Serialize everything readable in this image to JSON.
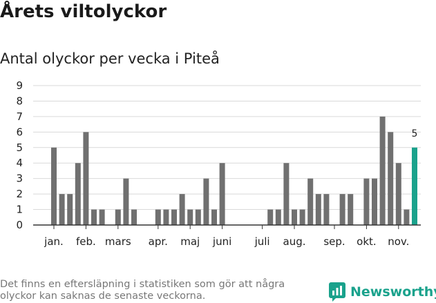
{
  "header": {
    "title": "Årets viltolyckor",
    "subtitle": "Antal olyckor per vecka i Piteå"
  },
  "footer": {
    "note": "Det finns en eftersläpning i statistiken som gör att några olyckor kan saknas de senaste veckorna.",
    "brand": "Newsworthy",
    "brand_icon": "newsworthy-logo-icon"
  },
  "colors": {
    "bar": "#707070",
    "highlight": "#1aa28c",
    "grid": "#d9d9d9",
    "axis": "#333333",
    "brand": "#1aa28c"
  },
  "chart_data": {
    "type": "bar",
    "title": "Antal olyckor per vecka i Piteå",
    "xlabel": "",
    "ylabel": "",
    "ylim": [
      0,
      9
    ],
    "yticks": [
      0,
      1,
      2,
      3,
      4,
      5,
      6,
      7,
      8,
      9
    ],
    "grid": true,
    "weeks": [
      1,
      2,
      3,
      4,
      5,
      6,
      7,
      8,
      9,
      10,
      11,
      12,
      13,
      14,
      15,
      16,
      17,
      18,
      19,
      20,
      21,
      22,
      23,
      24,
      25,
      26,
      27,
      28,
      29,
      30,
      31,
      32,
      33,
      34,
      35,
      36,
      37,
      38,
      39,
      40,
      41,
      42,
      43,
      44,
      45,
      46
    ],
    "values": [
      5,
      2,
      2,
      4,
      6,
      1,
      1,
      0,
      1,
      3,
      1,
      0,
      0,
      1,
      1,
      1,
      2,
      1,
      1,
      3,
      1,
      4,
      0,
      0,
      0,
      0,
      0,
      1,
      1,
      4,
      1,
      1,
      3,
      2,
      2,
      0,
      2,
      2,
      0,
      3,
      3,
      7,
      6,
      4,
      1,
      5
    ],
    "months": [
      {
        "label": "jan.",
        "week": 1
      },
      {
        "label": "feb.",
        "week": 5
      },
      {
        "label": "mars",
        "week": 9
      },
      {
        "label": "apr.",
        "week": 14
      },
      {
        "label": "maj",
        "week": 18
      },
      {
        "label": "juni",
        "week": 22
      },
      {
        "label": "juli",
        "week": 27
      },
      {
        "label": "aug.",
        "week": 31
      },
      {
        "label": "sep.",
        "week": 36
      },
      {
        "label": "okt.",
        "week": 40
      },
      {
        "label": "nov.",
        "week": 44
      }
    ],
    "highlight_last": true,
    "last_value_label": "5"
  }
}
